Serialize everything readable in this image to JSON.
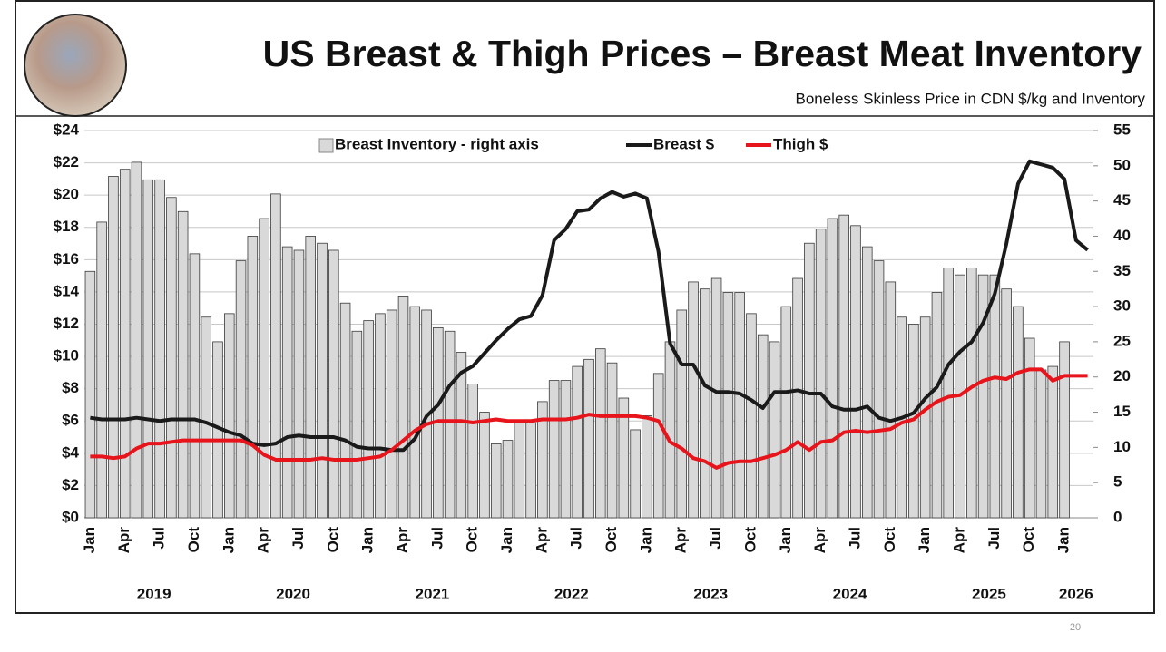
{
  "page_number": "20",
  "chart_data": {
    "type": "combo",
    "title": "US Breast & Thigh Prices – Breast Meat Inventory",
    "subtitle": "Boneless Skinless Price in CDN $/kg and Inventory",
    "categories": [
      "Jan",
      null,
      null,
      "Apr",
      null,
      null,
      "Jul",
      null,
      null,
      "Oct",
      null,
      null,
      "Jan",
      null,
      null,
      "Apr",
      null,
      null,
      "Jul",
      null,
      null,
      "Oct",
      null,
      null,
      "Jan",
      null,
      null,
      "Apr",
      null,
      null,
      "Jul",
      null,
      null,
      "Oct",
      null,
      null,
      "Jan",
      null,
      null,
      "Apr",
      null,
      null,
      "Jul",
      null,
      null,
      "Oct",
      null,
      null,
      "Jan",
      null,
      null,
      "Apr",
      null,
      null,
      "Jul",
      null,
      null,
      "Oct",
      null,
      null,
      "Jan",
      null,
      null,
      "Apr",
      null,
      null,
      "Jul",
      null,
      null,
      "Oct",
      null,
      null,
      "Jan",
      null,
      null,
      "Apr",
      null,
      null,
      "Jul",
      null,
      null,
      "Oct",
      null,
      null,
      "Jan",
      null,
      null
    ],
    "year_labels": [
      "2019",
      "2020",
      "2021",
      "2022",
      "2023",
      "2024",
      "2025",
      "2026"
    ],
    "series": [
      {
        "name": "Breast Inventory - right axis",
        "type": "bar",
        "axis": "y2",
        "color": "#d9d9d9",
        "values": [
          35,
          42,
          48.5,
          49.5,
          50.5,
          48,
          48,
          45.5,
          43.5,
          37.5,
          28.5,
          25,
          29,
          36.5,
          40,
          42.5,
          46,
          38.5,
          38,
          40,
          39,
          38,
          30.5,
          26.5,
          28,
          29,
          29.5,
          31.5,
          30,
          29.5,
          27,
          26.5,
          23.5,
          19,
          15,
          10.5,
          11,
          13.5,
          13.5,
          16.5,
          19.5,
          19.5,
          21.5,
          22.5,
          24,
          22,
          17,
          12.5,
          14.5,
          20.5,
          25,
          29.5,
          33.5,
          32.5,
          34,
          32,
          32,
          29,
          26,
          25,
          30,
          34,
          39,
          41,
          42.5,
          43,
          41.5,
          38.5,
          36.5,
          33.5,
          28.5,
          27.5,
          28.5,
          32,
          35.5,
          34.5,
          35.5,
          34.5,
          34.5,
          32.5,
          30,
          25.5,
          21,
          21.5,
          25,
          null,
          null
        ]
      },
      {
        "name": "Breast $",
        "type": "line",
        "color": "#1a1a1a",
        "values": [
          6.2,
          6.1,
          6.1,
          6.1,
          6.2,
          6.1,
          6.0,
          6.1,
          6.1,
          6.1,
          5.9,
          5.6,
          5.3,
          5.1,
          4.6,
          4.5,
          4.6,
          5.0,
          5.1,
          5.0,
          5.0,
          5.0,
          4.8,
          4.4,
          4.3,
          4.3,
          4.2,
          4.2,
          4.9,
          6.3,
          7.0,
          8.2,
          9.0,
          9.4,
          10.2,
          11.0,
          11.7,
          12.3,
          12.5,
          13.8,
          17.2,
          17.9,
          19.0,
          19.1,
          19.8,
          20.2,
          19.9,
          20.1,
          19.8,
          16.5,
          10.8,
          9.5,
          9.5,
          8.2,
          7.8,
          7.8,
          7.7,
          7.3,
          6.8,
          7.8,
          7.8,
          7.9,
          7.7,
          7.7,
          6.9,
          6.7,
          6.7,
          6.9,
          6.2,
          6.0,
          6.2,
          6.5,
          7.4,
          8.1,
          9.5,
          10.3,
          10.9,
          12.1,
          13.9,
          17.0,
          20.7,
          22.1,
          21.9,
          21.7,
          21.0,
          17.2,
          16.6
        ]
      },
      {
        "name": "Thigh $",
        "type": "line",
        "color": "#e8141b",
        "values": [
          3.8,
          3.8,
          3.7,
          3.8,
          4.3,
          4.6,
          4.6,
          4.7,
          4.8,
          4.8,
          4.8,
          4.8,
          4.8,
          4.8,
          4.5,
          3.9,
          3.6,
          3.6,
          3.6,
          3.6,
          3.7,
          3.6,
          3.6,
          3.6,
          3.7,
          3.8,
          4.2,
          4.8,
          5.4,
          5.8,
          6.0,
          6.0,
          6.0,
          5.9,
          6.0,
          6.1,
          6.0,
          6.0,
          6.0,
          6.1,
          6.1,
          6.1,
          6.2,
          6.4,
          6.3,
          6.3,
          6.3,
          6.3,
          6.2,
          6.0,
          4.7,
          4.3,
          3.7,
          3.5,
          3.1,
          3.4,
          3.5,
          3.5,
          3.7,
          3.9,
          4.2,
          4.7,
          4.2,
          4.7,
          4.8,
          5.3,
          5.4,
          5.3,
          5.4,
          5.5,
          5.9,
          6.1,
          6.7,
          7.2,
          7.5,
          7.6,
          8.1,
          8.5,
          8.7,
          8.6,
          9.0,
          9.2,
          9.2,
          8.5,
          8.8,
          8.8,
          8.8
        ]
      }
    ],
    "ylim": [
      0,
      24
    ],
    "yticks": [
      {
        "value": 0,
        "label": "$0"
      },
      {
        "value": 2,
        "label": "$2"
      },
      {
        "value": 4,
        "label": "$4"
      },
      {
        "value": 6,
        "label": "$6"
      },
      {
        "value": 8,
        "label": "$8"
      },
      {
        "value": 10,
        "label": "$10"
      },
      {
        "value": 12,
        "label": "$12"
      },
      {
        "value": 14,
        "label": "$14"
      },
      {
        "value": 16,
        "label": "$16"
      },
      {
        "value": 18,
        "label": "$18"
      },
      {
        "value": 20,
        "label": "$20"
      },
      {
        "value": 22,
        "label": "$22"
      },
      {
        "value": 24,
        "label": "$24"
      }
    ],
    "y2lim": [
      0,
      55
    ],
    "y2ticks": [
      0,
      5,
      10,
      15,
      20,
      25,
      30,
      35,
      40,
      45,
      50,
      55
    ],
    "grid": true
  }
}
